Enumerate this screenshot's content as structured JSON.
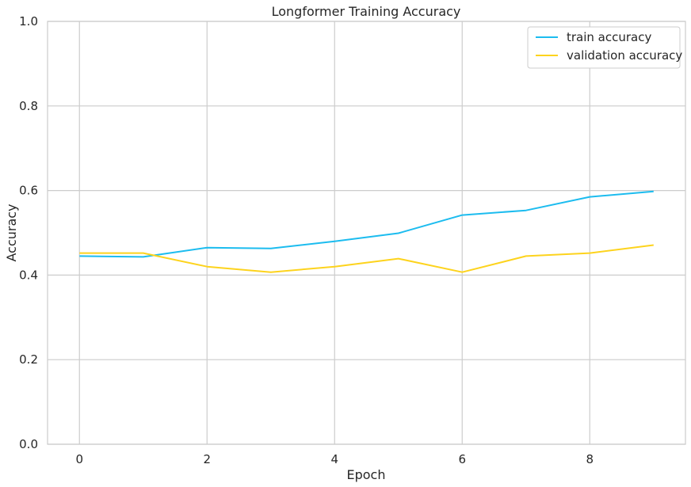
{
  "chart_data": {
    "type": "line",
    "title": "Longformer Training Accuracy",
    "xlabel": "Epoch",
    "ylabel": "Accuracy",
    "xlim": [
      -0.5,
      9.5
    ],
    "ylim": [
      0,
      1.0
    ],
    "x_ticks": [
      0,
      2,
      4,
      6,
      8
    ],
    "x_tick_labels": [
      "0",
      "2",
      "4",
      "6",
      "8"
    ],
    "y_ticks": [
      0,
      0.2,
      0.4,
      0.6,
      0.8,
      1.0
    ],
    "y_tick_labels": [
      "0.0",
      "0.2",
      "0.4",
      "0.6",
      "0.8",
      "1.0"
    ],
    "grid": true,
    "legend_position": "top-right",
    "x": [
      0,
      1,
      2,
      3,
      4,
      5,
      6,
      7,
      8,
      9
    ],
    "series": [
      {
        "name": "train accuracy",
        "color": "#1cbcef",
        "values": [
          0.445,
          0.443,
          0.465,
          0.463,
          0.48,
          0.499,
          0.542,
          0.553,
          0.585,
          0.598
        ]
      },
      {
        "name": "validation accuracy",
        "color": "#fdd31d",
        "values": [
          0.452,
          0.452,
          0.42,
          0.407,
          0.42,
          0.439,
          0.407,
          0.445,
          0.452,
          0.471
        ]
      }
    ]
  }
}
